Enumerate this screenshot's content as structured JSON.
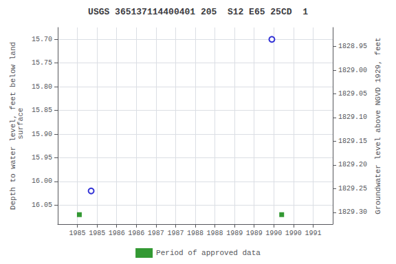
{
  "chart_data": {
    "type": "scatter",
    "title": "USGS 365137114400401 205  S12 E65 25CD  1",
    "ylabel": "Depth to water level, feet below land\n surface",
    "y2label": "Groundwater level above NGVD 1929, feet",
    "xlim": [
      1984.5,
      1991.5
    ],
    "xticks": [
      1985,
      {
        "value": 1985.5,
        "label": "1985"
      },
      1986,
      {
        "value": 1986.5,
        "label": "1986"
      },
      1987,
      {
        "value": 1987.5,
        "label": "1987"
      },
      1988,
      {
        "value": 1988.5,
        "label": "1988"
      },
      1989,
      {
        "value": 1989.5,
        "label": "1989"
      },
      1990,
      {
        "value": 1990.5,
        "label": "1990"
      },
      1991
    ],
    "ylim": [
      16.09,
      15.675
    ],
    "yticks": [
      {
        "value": 15.7,
        "label": "15.70"
      },
      15.75,
      {
        "value": 15.8,
        "label": "15.80"
      },
      15.85,
      {
        "value": 15.9,
        "label": "15.90"
      },
      15.95,
      {
        "value": 16,
        "label": "16.00"
      },
      16.05
    ],
    "y2lim": [
      1829.325,
      1828.91
    ],
    "y2ticks": [
      {
        "value": 1829.3,
        "label": "1829.30"
      },
      1829.25,
      {
        "value": 1829.2,
        "label": "1829.20"
      },
      1829.15,
      {
        "value": 1829.1,
        "label": "1829.10"
      },
      1829.05,
      {
        "value": 1829,
        "label": "1829.00"
      },
      1828.95
    ],
    "grid": true,
    "legend": "bottom",
    "series": [
      {
        "marker": "open_circle",
        "color": "#0000cc",
        "x": [
          1985.35,
          1989.95
        ],
        "values": [
          16.02,
          15.7
        ]
      },
      {
        "name": "Period of approved data",
        "marker": "square",
        "color": "#008000",
        "x": [
          1985.05,
          1990.2
        ],
        "values": [
          16.07,
          16.07
        ]
      }
    ]
  }
}
